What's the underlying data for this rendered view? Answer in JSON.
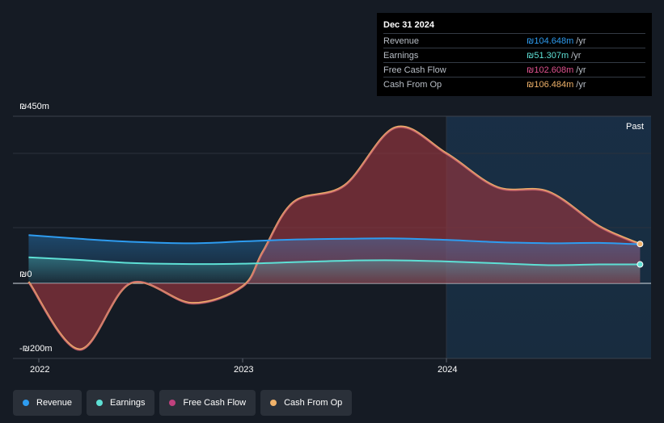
{
  "tooltip": {
    "date": "Dec 31 2024",
    "rows": [
      {
        "label": "Revenue",
        "value": "₪104.648m",
        "unit": "/yr",
        "color": "#2e9cf0"
      },
      {
        "label": "Earnings",
        "value": "₪51.307m",
        "unit": "/yr",
        "color": "#5ee0d5"
      },
      {
        "label": "Free Cash Flow",
        "value": "₪102.608m",
        "unit": "/yr",
        "color": "#e0528f"
      },
      {
        "label": "Cash From Op",
        "value": "₪106.484m",
        "unit": "/yr",
        "color": "#f0b26a"
      }
    ]
  },
  "past_label": "Past",
  "legend": [
    {
      "label": "Revenue",
      "color": "#2e9cf0"
    },
    {
      "label": "Earnings",
      "color": "#5ee0d5"
    },
    {
      "label": "Free Cash Flow",
      "color": "#c0417e"
    },
    {
      "label": "Cash From Op",
      "color": "#f0b26a"
    }
  ],
  "chart_data": {
    "type": "line",
    "title": "",
    "xlabel": "",
    "ylabel": "",
    "ylim": [
      -200,
      450
    ],
    "xlim": [
      2021.95,
      2024.95
    ],
    "ytick_labels": [
      {
        "value": 450,
        "label": "₪450m"
      },
      {
        "value": 0,
        "label": "₪0"
      },
      {
        "value": -200,
        "label": "-₪200m"
      }
    ],
    "xtick_labels": [
      {
        "value": 2022,
        "label": "2022"
      },
      {
        "value": 2023,
        "label": "2023"
      },
      {
        "value": 2024,
        "label": "2024"
      }
    ],
    "past_region_start": 2024.0,
    "series": [
      {
        "name": "Revenue",
        "color": "#2e9cf0",
        "x": [
          2021.95,
          2022.2,
          2022.45,
          2022.75,
          2023.0,
          2023.25,
          2023.5,
          2023.75,
          2024.0,
          2024.25,
          2024.5,
          2024.75,
          2024.95
        ],
        "values": [
          130,
          120,
          112,
          108,
          113,
          118,
          120,
          121,
          117,
          111,
          108,
          109,
          105
        ]
      },
      {
        "name": "Earnings",
        "color": "#5ee0d5",
        "x": [
          2021.95,
          2022.2,
          2022.45,
          2022.75,
          2023.0,
          2023.25,
          2023.5,
          2023.75,
          2024.0,
          2024.25,
          2024.5,
          2024.75,
          2024.95
        ],
        "values": [
          70,
          63,
          55,
          52,
          53,
          57,
          61,
          62,
          59,
          54,
          49,
          51,
          51
        ]
      },
      {
        "name": "Free Cash Flow",
        "color": "#e0528f",
        "x": [
          2021.95,
          2022.2,
          2022.45,
          2022.75,
          2023.0,
          2023.1,
          2023.25,
          2023.5,
          2023.75,
          2024.0,
          2024.25,
          2024.5,
          2024.75,
          2024.95
        ],
        "values": [
          2,
          -180,
          1,
          -55,
          -10,
          84,
          217,
          262,
          418,
          348,
          257,
          245,
          152,
          103
        ]
      },
      {
        "name": "Cash From Op",
        "color": "#f0b26a",
        "x": [
          2021.95,
          2022.2,
          2022.45,
          2022.75,
          2023.0,
          2023.1,
          2023.25,
          2023.5,
          2023.75,
          2024.0,
          2024.25,
          2024.5,
          2024.75,
          2024.95
        ],
        "values": [
          4,
          -178,
          0,
          -53,
          -8,
          86,
          219,
          264,
          420,
          350,
          259,
          247,
          154,
          106
        ]
      }
    ]
  }
}
